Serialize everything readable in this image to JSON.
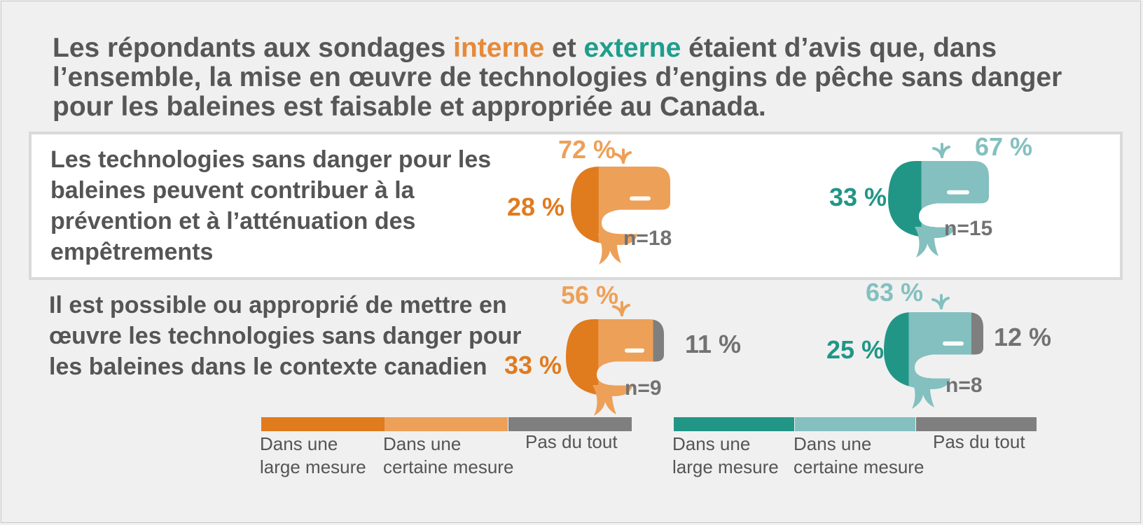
{
  "title": {
    "part1": "Les répondants aux sondages ",
    "interne": "interne",
    "part2": " et ",
    "externe": "externe",
    "part3": " étaient d’avis que, dans l’ensemble, la mise en œuvre de technologies d’engins de pêche sans danger pour les baleines est faisable et appropriée au Canada."
  },
  "colors": {
    "interne_large": "#e07b1e",
    "interne_certaine": "#eda058",
    "externe_large": "#219687",
    "externe_certaine": "#83c0bf",
    "pas_du_tout": "#7f7f7f",
    "label_grey": "#727272"
  },
  "chart_data": [
    {
      "type": "bar",
      "question": "Les technologies sans danger pour les baleines peuvent contribuer à la prévention et à l’atténuation des empêtrements",
      "groups": [
        {
          "name": "interne",
          "n": "n=18",
          "values": [
            28,
            72,
            0
          ],
          "labels": [
            "28 %",
            "72 %",
            ""
          ]
        },
        {
          "name": "externe",
          "n": "n=15",
          "values": [
            33,
            67,
            0
          ],
          "labels": [
            "33 %",
            "67 %",
            ""
          ]
        }
      ]
    },
    {
      "type": "bar",
      "question": "Il est possible ou approprié de mettre en œuvre les technologies sans danger pour les baleines dans le contexte canadien",
      "groups": [
        {
          "name": "interne",
          "n": "n=9",
          "values": [
            33,
            56,
            11
          ],
          "labels": [
            "33 %",
            "56 %",
            "11 %"
          ]
        },
        {
          "name": "externe",
          "n": "n=8",
          "values": [
            25,
            63,
            12
          ],
          "labels": [
            "25 %",
            "63 %",
            "12 %"
          ]
        }
      ]
    }
  ],
  "legend": {
    "interne": [
      {
        "line1": "Dans une",
        "line2": "large mesure"
      },
      {
        "line1": "Dans une",
        "line2": "certaine mesure"
      },
      {
        "line1": "Pas du tout",
        "line2": ""
      }
    ],
    "externe": [
      {
        "line1": "Dans une",
        "line2": "large mesure"
      },
      {
        "line1": "Dans une",
        "line2": "certaine mesure"
      },
      {
        "line1": "Pas du tout",
        "line2": ""
      }
    ]
  }
}
